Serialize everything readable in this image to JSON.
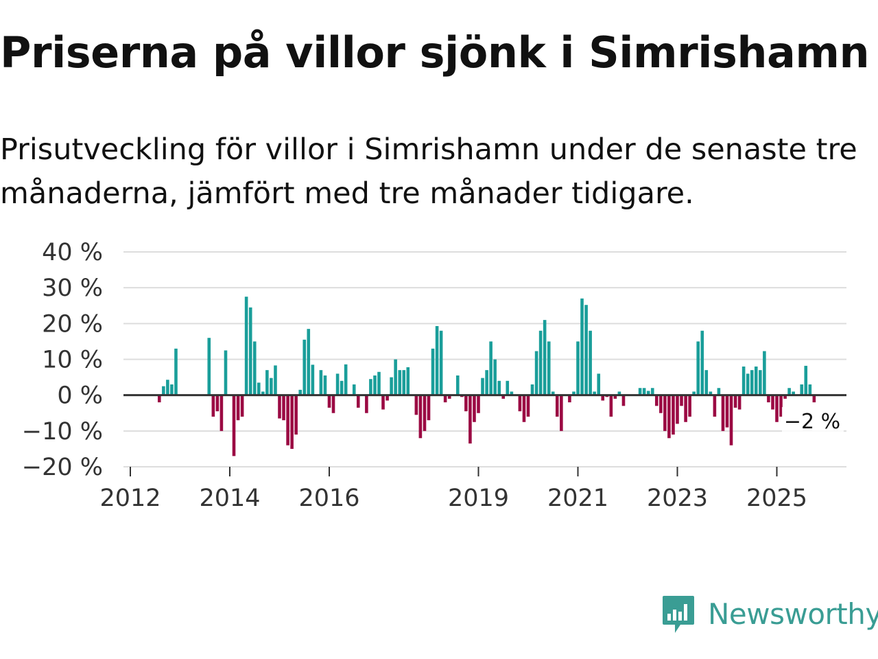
{
  "title": "Priserna på villor sjönk i Simrishamn",
  "subtitle": "Prisutveckling för villor i Simrishamn under de senaste tre månaderna, jämfört med tre månader tidigare.",
  "brand": {
    "name": "Newsworthy",
    "color": "#3a9d94",
    "icon": "newsworthy-logo-icon"
  },
  "colors": {
    "positive": "#1a9e9a",
    "negative": "#9b0a43",
    "grid": "#dddddd",
    "axis": "#333333"
  },
  "chart_data": {
    "type": "bar",
    "title": "",
    "xlabel": "",
    "ylabel": "",
    "ylim": [
      -20,
      40
    ],
    "xlim": [
      2012,
      2026.6
    ],
    "y_ticks": [
      40,
      30,
      20,
      10,
      0,
      -10,
      -20
    ],
    "y_tick_labels": [
      "40 %",
      "30 %",
      "20 %",
      "10 %",
      "0 %",
      "−10 %",
      "−20 %"
    ],
    "x_ticks": [
      2012,
      2014,
      2016,
      2019,
      2021,
      2023,
      2025
    ],
    "x_tick_labels": [
      "2012",
      "2014",
      "2016",
      "2019",
      "2021",
      "2023",
      "2025"
    ],
    "annotation": {
      "text": "−2 %",
      "x": 2025.75,
      "y": -2
    },
    "x": [
      2012.583,
      2012.667,
      2012.75,
      2012.833,
      2012.917,
      2013.583,
      2013.667,
      2013.75,
      2013.833,
      2013.917,
      2014.083,
      2014.167,
      2014.25,
      2014.333,
      2014.417,
      2014.5,
      2014.583,
      2014.667,
      2014.75,
      2014.833,
      2014.917,
      2015.0,
      2015.083,
      2015.167,
      2015.25,
      2015.333,
      2015.417,
      2015.5,
      2015.583,
      2015.667,
      2015.75,
      2015.833,
      2015.917,
      2016.0,
      2016.083,
      2016.167,
      2016.25,
      2016.333,
      2016.417,
      2016.5,
      2016.583,
      2016.667,
      2016.75,
      2016.833,
      2016.917,
      2017.0,
      2017.083,
      2017.167,
      2017.25,
      2017.333,
      2017.417,
      2017.5,
      2017.583,
      2017.667,
      2017.75,
      2017.833,
      2017.917,
      2018.0,
      2018.083,
      2018.167,
      2018.25,
      2018.333,
      2018.417,
      2018.5,
      2018.583,
      2018.667,
      2018.75,
      2018.833,
      2018.917,
      2019.0,
      2019.083,
      2019.167,
      2019.25,
      2019.333,
      2019.417,
      2019.5,
      2019.583,
      2019.667,
      2019.75,
      2019.833,
      2019.917,
      2020.0,
      2020.083,
      2020.167,
      2020.25,
      2020.333,
      2020.417,
      2020.5,
      2020.583,
      2020.667,
      2020.75,
      2020.833,
      2020.917,
      2021.0,
      2021.083,
      2021.167,
      2021.25,
      2021.333,
      2021.417,
      2021.5,
      2021.583,
      2021.667,
      2021.75,
      2021.833,
      2021.917,
      2022.0,
      2022.083,
      2022.167,
      2022.25,
      2022.333,
      2022.417,
      2022.5,
      2022.583,
      2022.667,
      2022.75,
      2022.833,
      2022.917,
      2023.0,
      2023.083,
      2023.167,
      2023.25,
      2023.333,
      2023.417,
      2023.5,
      2023.583,
      2023.667,
      2023.75,
      2023.833,
      2023.917,
      2024.0,
      2024.083,
      2024.167,
      2024.25,
      2024.333,
      2024.417,
      2024.5,
      2024.583,
      2024.667,
      2024.75,
      2024.833,
      2024.917,
      2025.0,
      2025.083,
      2025.167,
      2025.25,
      2025.333,
      2025.417,
      2025.5,
      2025.583,
      2025.667,
      2025.75
    ],
    "values": [
      -2,
      2.5,
      4.3,
      3,
      13,
      16,
      -6,
      -4.5,
      -10,
      12.5,
      -17,
      -7,
      -6,
      27.5,
      24.5,
      15,
      3.5,
      1,
      7,
      4.8,
      8.3,
      -6.5,
      -7,
      -14,
      -15,
      -11,
      1.5,
      15.5,
      18.5,
      8.5,
      0,
      7,
      5.5,
      -3.5,
      -5,
      6,
      4,
      8.6,
      0,
      3,
      -3.5,
      0,
      -5,
      4.5,
      5.5,
      6.5,
      -4,
      -1.5,
      5,
      10,
      7,
      7,
      7.8,
      0,
      -5.5,
      -12,
      -10,
      -7,
      13,
      19.3,
      18,
      -2,
      -1,
      0,
      5.5,
      -0.5,
      -4.5,
      -13.5,
      -7.5,
      -5,
      4.8,
      7,
      15,
      10,
      4,
      -1,
      4,
      1,
      0,
      -4.5,
      -7.5,
      -6,
      3,
      12.3,
      18,
      21,
      15,
      1,
      -6,
      -10,
      0,
      -2,
      1,
      15,
      27,
      25.2,
      18,
      1,
      6,
      -1.5,
      -0.5,
      -6,
      -1,
      1,
      -3,
      0,
      0,
      0,
      2,
      2,
      1.2,
      2,
      -3,
      -5,
      -10,
      -12,
      -11,
      -8,
      -3,
      -7.5,
      -6,
      1,
      15,
      18,
      7,
      1,
      -6,
      2,
      -10,
      -9,
      -14,
      -3.5,
      -4,
      8,
      6,
      7,
      8,
      7,
      12.3,
      -2,
      -4,
      -7.5,
      -6,
      -1,
      2,
      1,
      0,
      3,
      8.2,
      3,
      -2
    ]
  }
}
